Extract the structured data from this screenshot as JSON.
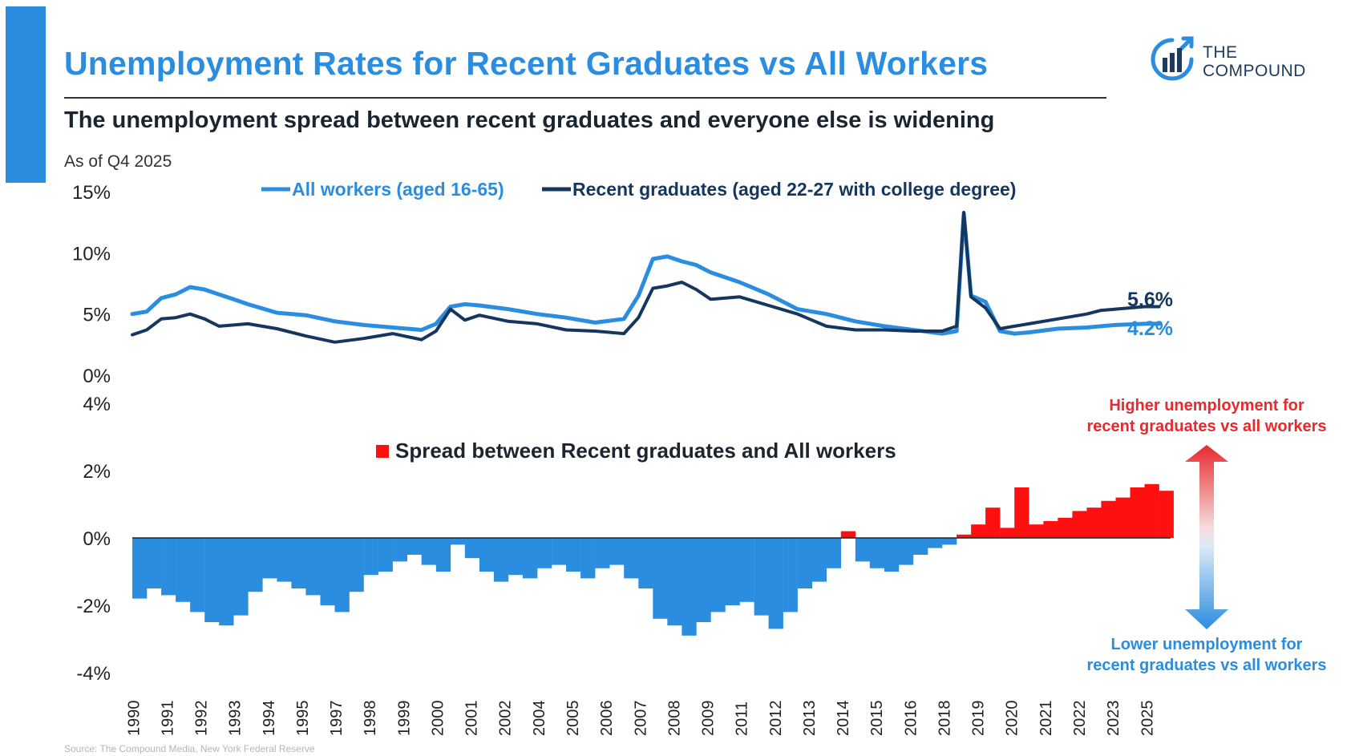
{
  "header": {
    "title": "Unemployment Rates for Recent Graduates vs All Workers",
    "subtitle": "The unemployment spread between recent graduates and everyone else is widening",
    "as_of": "As of Q4 2025"
  },
  "logo": {
    "line1": "THE",
    "line2": "COMPOUND",
    "icon": "bar-chart-circle-icon"
  },
  "footer": {
    "source": "Source: The Compound Media, New York Federal Reserve"
  },
  "colors": {
    "all_workers": "#2a8de0",
    "recent_graduates": "#15365e",
    "spread_positive": "#ff1010",
    "spread_negative": "#2a8de0",
    "title": "#2a8de0",
    "annotation_high": "#e8292d",
    "annotation_low": "#2a8de0"
  },
  "chart_data": [
    {
      "type": "line",
      "title": "",
      "xlim": [
        1990,
        2025.9
      ],
      "ylim": [
        0,
        15
      ],
      "yticks": [
        "0%",
        "5%",
        "10%",
        "15%"
      ],
      "legend": "top",
      "series": [
        {
          "name": "All workers (aged 16-65)",
          "x": [
            1990,
            1990.5,
            1991,
            1991.5,
            1992,
            1992.5,
            1993,
            1993.5,
            1994,
            1995,
            1996,
            1997,
            1998,
            1999,
            2000,
            2000.5,
            2001,
            2001.5,
            2002,
            2003,
            2004,
            2005,
            2006,
            2007,
            2007.5,
            2008,
            2008.5,
            2009,
            2009.5,
            2010,
            2011,
            2012,
            2013,
            2014,
            2015,
            2016,
            2017,
            2018,
            2018.5,
            2018.75,
            2019,
            2019.5,
            2020,
            2020.5,
            2021,
            2022,
            2023,
            2023.5,
            2024,
            2025,
            2025.5
          ],
          "y": [
            5.0,
            5.2,
            6.3,
            6.6,
            7.2,
            7.0,
            6.6,
            6.2,
            5.8,
            5.1,
            4.9,
            4.4,
            4.1,
            3.9,
            3.7,
            4.2,
            5.6,
            5.8,
            5.7,
            5.4,
            5.0,
            4.7,
            4.3,
            4.6,
            6.5,
            9.5,
            9.7,
            9.3,
            9.0,
            8.4,
            7.6,
            6.6,
            5.4,
            5.0,
            4.4,
            4.0,
            3.7,
            3.4,
            3.6,
            13.2,
            6.5,
            6.0,
            3.6,
            3.4,
            3.5,
            3.8,
            3.9,
            4.0,
            4.1,
            4.2,
            4.2
          ]
        },
        {
          "name": "Recent graduates (aged 22-27 with college degree)",
          "x": [
            1990,
            1990.5,
            1991,
            1991.5,
            1992,
            1992.5,
            1993,
            1993.5,
            1994,
            1995,
            1996,
            1997,
            1998,
            1999,
            2000,
            2000.5,
            2001,
            2001.5,
            2002,
            2003,
            2004,
            2005,
            2006,
            2007,
            2007.5,
            2008,
            2008.5,
            2009,
            2009.5,
            2010,
            2011,
            2012,
            2013,
            2014,
            2015,
            2016,
            2017,
            2018,
            2018.5,
            2018.75,
            2019,
            2019.5,
            2020,
            2020.5,
            2021,
            2022,
            2023,
            2023.5,
            2024,
            2025,
            2025.5
          ],
          "y": [
            3.3,
            3.7,
            4.6,
            4.7,
            5.0,
            4.6,
            4.0,
            4.1,
            4.2,
            3.8,
            3.2,
            2.7,
            3.0,
            3.4,
            2.9,
            3.6,
            5.4,
            4.5,
            4.9,
            4.4,
            4.2,
            3.7,
            3.6,
            3.4,
            4.7,
            7.1,
            7.3,
            7.6,
            7.0,
            6.2,
            6.4,
            5.7,
            5.0,
            4.0,
            3.7,
            3.7,
            3.6,
            3.6,
            4.0,
            13.3,
            6.4,
            5.5,
            3.8,
            4.0,
            4.2,
            4.6,
            5.0,
            5.3,
            5.4,
            5.6,
            5.6
          ]
        }
      ],
      "end_labels": [
        "5.6%",
        "4.2%"
      ]
    },
    {
      "type": "bar",
      "title": "",
      "ylim": [
        -4,
        4
      ],
      "yticks": [
        "-4%",
        "-2%",
        "0%",
        "2%",
        "4%"
      ],
      "xlim": [
        1990,
        2025.9
      ],
      "legend": "Spread between Recent graduates and All workers",
      "annotations": {
        "high": [
          "Higher unemployment for",
          "recent graduates vs all workers"
        ],
        "low": [
          "Lower unemployment for",
          "recent graduates vs all workers"
        ]
      },
      "x": [
        1990,
        1990.5,
        1991,
        1991.5,
        1992,
        1992.5,
        1993,
        1993.5,
        1994,
        1994.5,
        1995,
        1995.5,
        1996,
        1996.5,
        1997,
        1997.5,
        1998,
        1998.5,
        1999,
        1999.5,
        2000,
        2000.5,
        2001,
        2001.5,
        2002,
        2002.5,
        2003,
        2003.5,
        2004,
        2004.5,
        2005,
        2005.5,
        2006,
        2006.5,
        2007,
        2007.5,
        2008,
        2008.5,
        2009,
        2009.5,
        2010,
        2010.5,
        2011,
        2011.5,
        2012,
        2012.5,
        2013,
        2013.5,
        2014,
        2014.5,
        2015,
        2015.5,
        2016,
        2016.5,
        2017,
        2017.5,
        2018,
        2018.5,
        2019,
        2019.5,
        2020,
        2020.5,
        2021,
        2021.5,
        2022,
        2022.5,
        2023,
        2023.5,
        2024,
        2024.5,
        2025,
        2025.5
      ],
      "values": [
        -1.8,
        -1.5,
        -1.7,
        -1.9,
        -2.2,
        -2.5,
        -2.6,
        -2.3,
        -1.6,
        -1.2,
        -1.3,
        -1.5,
        -1.7,
        -2.0,
        -2.2,
        -1.6,
        -1.1,
        -1.0,
        -0.7,
        -0.5,
        -0.8,
        -1.0,
        -0.2,
        -0.6,
        -1.0,
        -1.3,
        -1.1,
        -1.2,
        -0.9,
        -0.8,
        -1.0,
        -1.2,
        -0.9,
        -0.8,
        -1.2,
        -1.5,
        -2.4,
        -2.6,
        -2.9,
        -2.5,
        -2.2,
        -2.0,
        -1.9,
        -2.3,
        -2.7,
        -2.2,
        -1.5,
        -1.3,
        -0.9,
        0.2,
        -0.7,
        -0.9,
        -1.0,
        -0.8,
        -0.5,
        -0.3,
        -0.2,
        0.1,
        0.4,
        0.9,
        0.3,
        1.5,
        0.4,
        0.5,
        0.6,
        0.8,
        0.9,
        1.1,
        1.2,
        1.5,
        1.6,
        1.4
      ]
    }
  ]
}
